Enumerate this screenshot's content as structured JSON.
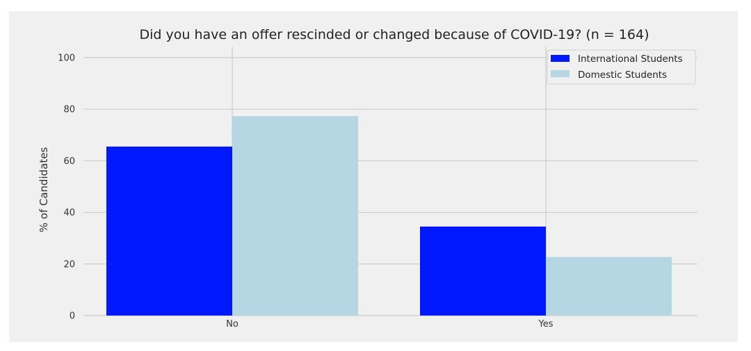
{
  "chart_data": {
    "type": "bar",
    "title": "Did you have an offer rescinded or changed because of COVID-19? (n = 164)",
    "xlabel": "",
    "ylabel": "% of Candidates",
    "categories": [
      "No",
      "Yes"
    ],
    "series": [
      {
        "name": "International Students",
        "values": [
          65.5,
          34.5
        ],
        "color": "#0019ff"
      },
      {
        "name": "Domestic Students",
        "values": [
          77.3,
          22.7
        ],
        "color": "#b4d7e3"
      }
    ],
    "ylim": [
      0,
      104
    ],
    "yticks": [
      0,
      20,
      40,
      60,
      80,
      100
    ],
    "grid": true,
    "legend_position": "top-right"
  }
}
